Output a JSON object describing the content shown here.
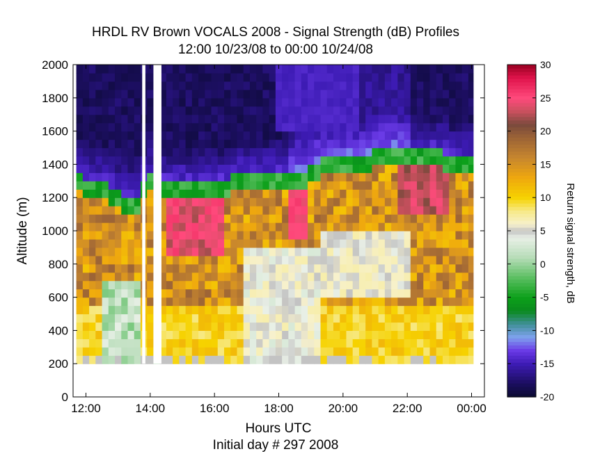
{
  "chart_data": {
    "type": "heatmap",
    "title": "HRDL RV Brown VOCALS 2008 - Signal Strength (dB) Profiles",
    "subtitle": "12:00 10/23/08 to 00:00 10/24/08",
    "xlabel": "Hours UTC",
    "xlabel2": "Initial day # 297  2008",
    "ylabel": "Altitude (m)",
    "colorbar_label": "Return signal strength, dB",
    "x_ticks": [
      {
        "value": 12,
        "label": "12:00"
      },
      {
        "value": 14,
        "label": "14:00"
      },
      {
        "value": 16,
        "label": "16:00"
      },
      {
        "value": 18,
        "label": "18:00"
      },
      {
        "value": 20,
        "label": "20:00"
      },
      {
        "value": 22,
        "label": "22:00"
      },
      {
        "value": 24,
        "label": "00:00"
      }
    ],
    "y_ticks": [
      {
        "value": 0,
        "label": "0"
      },
      {
        "value": 200,
        "label": "200"
      },
      {
        "value": 400,
        "label": "400"
      },
      {
        "value": 600,
        "label": "600"
      },
      {
        "value": 800,
        "label": "800"
      },
      {
        "value": 1000,
        "label": "1000"
      },
      {
        "value": 1200,
        "label": "1200"
      },
      {
        "value": 1400,
        "label": "1400"
      },
      {
        "value": 1600,
        "label": "1600"
      },
      {
        "value": 1800,
        "label": "1800"
      },
      {
        "value": 2000,
        "label": "2000"
      }
    ],
    "colorbar_ticks": [
      {
        "value": -20,
        "label": "-20"
      },
      {
        "value": -15,
        "label": "-15"
      },
      {
        "value": -10,
        "label": "-10"
      },
      {
        "value": -5,
        "label": "-5"
      },
      {
        "value": 0,
        "label": "0"
      },
      {
        "value": 5,
        "label": "5"
      },
      {
        "value": 10,
        "label": "10"
      },
      {
        "value": 15,
        "label": "15"
      },
      {
        "value": 20,
        "label": "20"
      },
      {
        "value": 25,
        "label": "25"
      },
      {
        "value": 30,
        "label": "30"
      }
    ],
    "xlim": [
      11.6,
      24.4
    ],
    "ylim": [
      0,
      2000
    ],
    "clim": [
      -20,
      30
    ],
    "data_altitude_range": [
      200,
      2000
    ],
    "data_time_range": [
      11.7,
      24.05
    ],
    "gaps_hours": [
      [
        13.75,
        13.85
      ],
      [
        14.1,
        14.35
      ]
    ],
    "colormap_stops": [
      {
        "value": -20,
        "color": "#0a0a30"
      },
      {
        "value": -18,
        "color": "#1b0e5e"
      },
      {
        "value": -15,
        "color": "#3d1bb4"
      },
      {
        "value": -13,
        "color": "#6a3ae6"
      },
      {
        "value": -11,
        "color": "#7fa2ee"
      },
      {
        "value": -9,
        "color": "#3f8f96"
      },
      {
        "value": -7,
        "color": "#0a8a1e"
      },
      {
        "value": -5,
        "color": "#0ca01a"
      },
      {
        "value": -2,
        "color": "#5cbf62"
      },
      {
        "value": 1,
        "color": "#b7dcb8"
      },
      {
        "value": 4,
        "color": "#e9f0e7"
      },
      {
        "value": 5,
        "color": "#c3c3c3"
      },
      {
        "value": 6,
        "color": "#f7f1cd"
      },
      {
        "value": 8,
        "color": "#f7ea88"
      },
      {
        "value": 10,
        "color": "#f6d200"
      },
      {
        "value": 13,
        "color": "#efa80e"
      },
      {
        "value": 16,
        "color": "#c7862e"
      },
      {
        "value": 19,
        "color": "#9c6436"
      },
      {
        "value": 21,
        "color": "#7a4a3c"
      },
      {
        "value": 23,
        "color": "#c9505e"
      },
      {
        "value": 25,
        "color": "#ff4a7c"
      },
      {
        "value": 28,
        "color": "#e0144c"
      },
      {
        "value": 30,
        "color": "#9a0021"
      }
    ],
    "boundary_layer_top_m": [
      [
        11.7,
        1300
      ],
      [
        12.5,
        1250
      ],
      [
        13.0,
        1200
      ],
      [
        13.5,
        1150
      ],
      [
        14.0,
        1300
      ],
      [
        14.5,
        1250
      ],
      [
        15.0,
        1250
      ],
      [
        16.0,
        1250
      ],
      [
        16.8,
        1300
      ],
      [
        17.5,
        1300
      ],
      [
        18.5,
        1300
      ],
      [
        19.0,
        1350
      ],
      [
        19.5,
        1400
      ],
      [
        20.0,
        1400
      ],
      [
        20.5,
        1400
      ],
      [
        21.0,
        1450
      ],
      [
        21.5,
        1450
      ],
      [
        22.0,
        1450
      ],
      [
        22.5,
        1450
      ],
      [
        23.0,
        1450
      ],
      [
        23.5,
        1400
      ],
      [
        24.0,
        1400
      ]
    ]
  }
}
